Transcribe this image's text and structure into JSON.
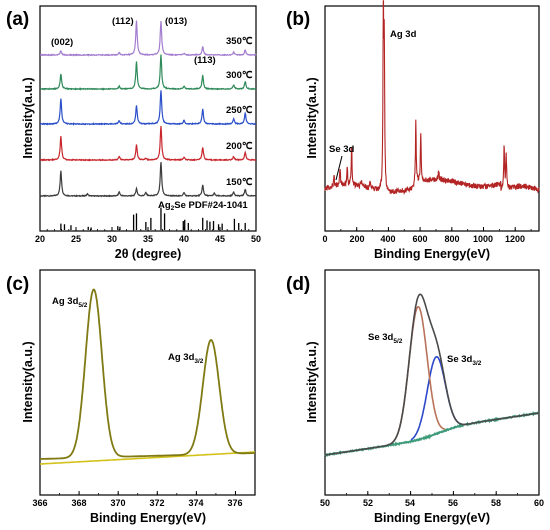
{
  "figure": {
    "panels": [
      {
        "label": "(a)"
      },
      {
        "label": "(b)"
      },
      {
        "label": "(c)"
      },
      {
        "label": "(d)"
      }
    ]
  },
  "chart_data": [
    {
      "panel": "(a)",
      "type": "line",
      "xlabel": "2θ (degree)",
      "ylabel": "Intensity(a.u.)",
      "xlim": [
        20,
        50
      ],
      "xticks": [
        "20",
        "25",
        "30",
        "35",
        "40",
        "45",
        "50"
      ],
      "peak_labels": [
        "(002)",
        "(112)",
        "(013)",
        "(113)"
      ],
      "reference": {
        "label": "Ag2Se PDF#24-1041",
        "positions": [
          22.9,
          23.4,
          24.3,
          26.7,
          27.1,
          30.8,
          31.1,
          33.0,
          33.4,
          34.7,
          35.4,
          36.8,
          37.3,
          39.9,
          40.1,
          40.6,
          42.6,
          43.2,
          43.6,
          44.1,
          44.8,
          45.3,
          47.0,
          47.6,
          48.5
        ],
        "intensities": [
          0.2,
          0.18,
          0.15,
          0.1,
          0.08,
          0.12,
          0.1,
          0.48,
          0.52,
          0.25,
          0.38,
          0.7,
          0.52,
          0.28,
          0.32,
          0.22,
          0.38,
          0.3,
          0.26,
          0.28,
          0.18,
          0.2,
          0.35,
          0.22,
          0.22
        ]
      },
      "series": [
        {
          "name": "150℃",
          "color": "#3c3c3c",
          "peaks": [
            [
              22.9,
              0.75
            ],
            [
              26.6,
              0.06
            ],
            [
              31.0,
              0.12
            ],
            [
              33.4,
              0.22
            ],
            [
              34.7,
              0.1
            ],
            [
              36.8,
              1.0
            ],
            [
              40.0,
              0.1
            ],
            [
              42.6,
              0.32
            ],
            [
              44.2,
              0.08
            ],
            [
              46.9,
              0.12
            ],
            [
              48.5,
              0.2
            ]
          ]
        },
        {
          "name": "200℃",
          "color": "#c8262c",
          "peaks": [
            [
              22.9,
              0.7
            ],
            [
              31.0,
              0.1
            ],
            [
              33.4,
              0.45
            ],
            [
              34.7,
              0.05
            ],
            [
              36.8,
              1.0
            ],
            [
              40.0,
              0.08
            ],
            [
              42.6,
              0.38
            ],
            [
              46.9,
              0.1
            ],
            [
              48.5,
              0.22
            ]
          ]
        },
        {
          "name": "250℃",
          "color": "#2a4fc8",
          "peaks": [
            [
              22.9,
              0.75
            ],
            [
              31.0,
              0.1
            ],
            [
              33.4,
              0.55
            ],
            [
              36.8,
              1.0
            ],
            [
              40.0,
              0.1
            ],
            [
              42.6,
              0.45
            ],
            [
              46.9,
              0.15
            ],
            [
              48.5,
              0.32
            ]
          ]
        },
        {
          "name": "300℃",
          "color": "#2f8a5a",
          "peaks": [
            [
              22.9,
              0.45
            ],
            [
              31.0,
              0.08
            ],
            [
              33.4,
              0.8
            ],
            [
              36.8,
              1.0
            ],
            [
              40.0,
              0.08
            ],
            [
              42.6,
              0.4
            ],
            [
              46.9,
              0.12
            ],
            [
              48.5,
              0.22
            ]
          ]
        },
        {
          "name": "350℃",
          "color": "#a37ccf",
          "peaks": [
            [
              22.9,
              0.12
            ],
            [
              31.0,
              0.06
            ],
            [
              33.4,
              1.0
            ],
            [
              36.8,
              1.0
            ],
            [
              40.0,
              0.05
            ],
            [
              42.6,
              0.25
            ],
            [
              46.9,
              0.08
            ],
            [
              48.5,
              0.15
            ]
          ]
        }
      ]
    },
    {
      "panel": "(b)",
      "type": "line",
      "xlabel": "Binding Energy(eV)",
      "ylabel": "Intensity(a.u.)",
      "xlim": [
        0,
        1350
      ],
      "xticks": [
        "0",
        "200",
        "400",
        "600",
        "800",
        "1000",
        "1200"
      ],
      "annotations": [
        "Ag 3d",
        "Se 3d"
      ],
      "color": "#b32424",
      "peaks": [
        [
          57,
          0.06
        ],
        [
          95,
          0.1
        ],
        [
          140,
          0.11
        ],
        [
          168,
          0.22
        ],
        [
          230,
          0.04
        ],
        [
          285,
          0.05
        ],
        [
          368,
          1.0
        ],
        [
          374,
          0.8
        ],
        [
          573,
          0.35
        ],
        [
          604,
          0.28
        ],
        [
          717,
          0.06
        ],
        [
          1130,
          0.25
        ],
        [
          1143,
          0.2
        ]
      ]
    },
    {
      "panel": "(c)",
      "type": "line",
      "xlabel": "Binding Energy(eV)",
      "ylabel": "Intensity(a.u.)",
      "xlim": [
        366,
        377
      ],
      "xticks": [
        "366",
        "368",
        "370",
        "372",
        "374",
        "376"
      ],
      "annotations": [
        {
          "text": "Ag 3d",
          "sub": "5/2"
        },
        {
          "text": "Ag 3d",
          "sub": "3/2"
        }
      ],
      "series": [
        {
          "color": "#807a14",
          "peaks": [
            [
              368.75,
              1.0
            ],
            [
              374.75,
              0.68
            ]
          ]
        },
        {
          "color": "#d4c21c",
          "baseline": true
        }
      ]
    },
    {
      "panel": "(d)",
      "type": "line",
      "xlabel": "Binding Energy(eV)",
      "ylabel": "Intensity(a.u.)",
      "xlim": [
        50,
        60
      ],
      "xticks": [
        "50",
        "52",
        "54",
        "56",
        "58",
        "60"
      ],
      "annotations": [
        {
          "text": "Se 3d",
          "sub": "5/2"
        },
        {
          "text": "Se 3d",
          "sub": "3/2"
        }
      ],
      "series": [
        {
          "role": "envelope",
          "color": "#4a4a4a"
        },
        {
          "role": "Se 3d5/2",
          "color": "#b8725a",
          "center": 54.35,
          "height": 0.95
        },
        {
          "role": "Se 3d3/2",
          "color": "#2c49c9",
          "center": 55.2,
          "height": 0.55
        },
        {
          "role": "background",
          "color": "#3d9a78"
        }
      ]
    }
  ]
}
